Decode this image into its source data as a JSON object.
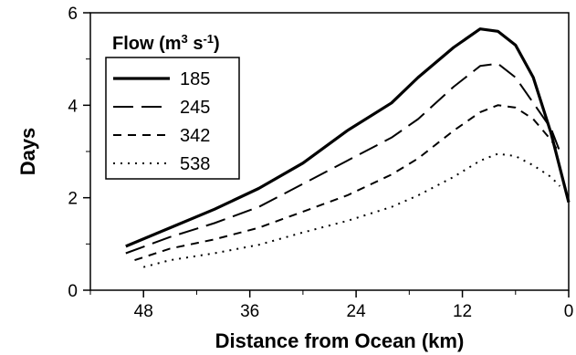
{
  "chart_data": {
    "type": "line",
    "xlabel": "Distance from Ocean (km)",
    "ylabel": "Days",
    "xlim": [
      54,
      0
    ],
    "ylim": [
      0,
      6
    ],
    "x_ticks": [
      "48",
      "36",
      "24",
      "12",
      "0"
    ],
    "y_ticks": [
      "0",
      "2",
      "4",
      "6"
    ],
    "legend": {
      "title_prefix": "Flow (m",
      "title_sup1": "3",
      "title_mid": " s",
      "title_sup2": "-1",
      "title_suffix": ")",
      "placement": "top-left"
    },
    "series": [
      {
        "name": "185",
        "style": "solid-thick",
        "x": [
          50,
          45,
          40,
          35,
          30,
          25,
          20,
          17,
          13,
          10,
          8,
          6,
          4,
          2,
          0
        ],
        "y": [
          0.95,
          1.35,
          1.75,
          2.2,
          2.75,
          3.45,
          4.05,
          4.6,
          5.25,
          5.65,
          5.6,
          5.3,
          4.6,
          3.4,
          1.9
        ]
      },
      {
        "name": "245",
        "style": "long-dash",
        "x": [
          50,
          45,
          40,
          35,
          30,
          25,
          20,
          17,
          13,
          10,
          8,
          6,
          4,
          2,
          1
        ],
        "y": [
          0.8,
          1.15,
          1.45,
          1.8,
          2.3,
          2.8,
          3.3,
          3.7,
          4.4,
          4.85,
          4.9,
          4.6,
          4.05,
          3.5,
          3.0
        ]
      },
      {
        "name": "342",
        "style": "short-dash",
        "x": [
          49,
          45,
          40,
          35,
          30,
          25,
          20,
          17,
          13,
          10,
          8,
          6,
          4,
          2,
          1
        ],
        "y": [
          0.65,
          0.9,
          1.1,
          1.35,
          1.7,
          2.05,
          2.5,
          2.85,
          3.45,
          3.85,
          4.0,
          3.95,
          3.7,
          3.25,
          2.95
        ]
      },
      {
        "name": "538",
        "style": "dotted",
        "x": [
          48,
          45,
          40,
          35,
          30,
          25,
          20,
          17,
          13,
          10,
          8,
          6,
          4,
          2,
          1
        ],
        "y": [
          0.5,
          0.65,
          0.8,
          0.98,
          1.25,
          1.5,
          1.8,
          2.05,
          2.45,
          2.8,
          2.95,
          2.9,
          2.7,
          2.45,
          2.25
        ]
      }
    ],
    "grid": false
  }
}
